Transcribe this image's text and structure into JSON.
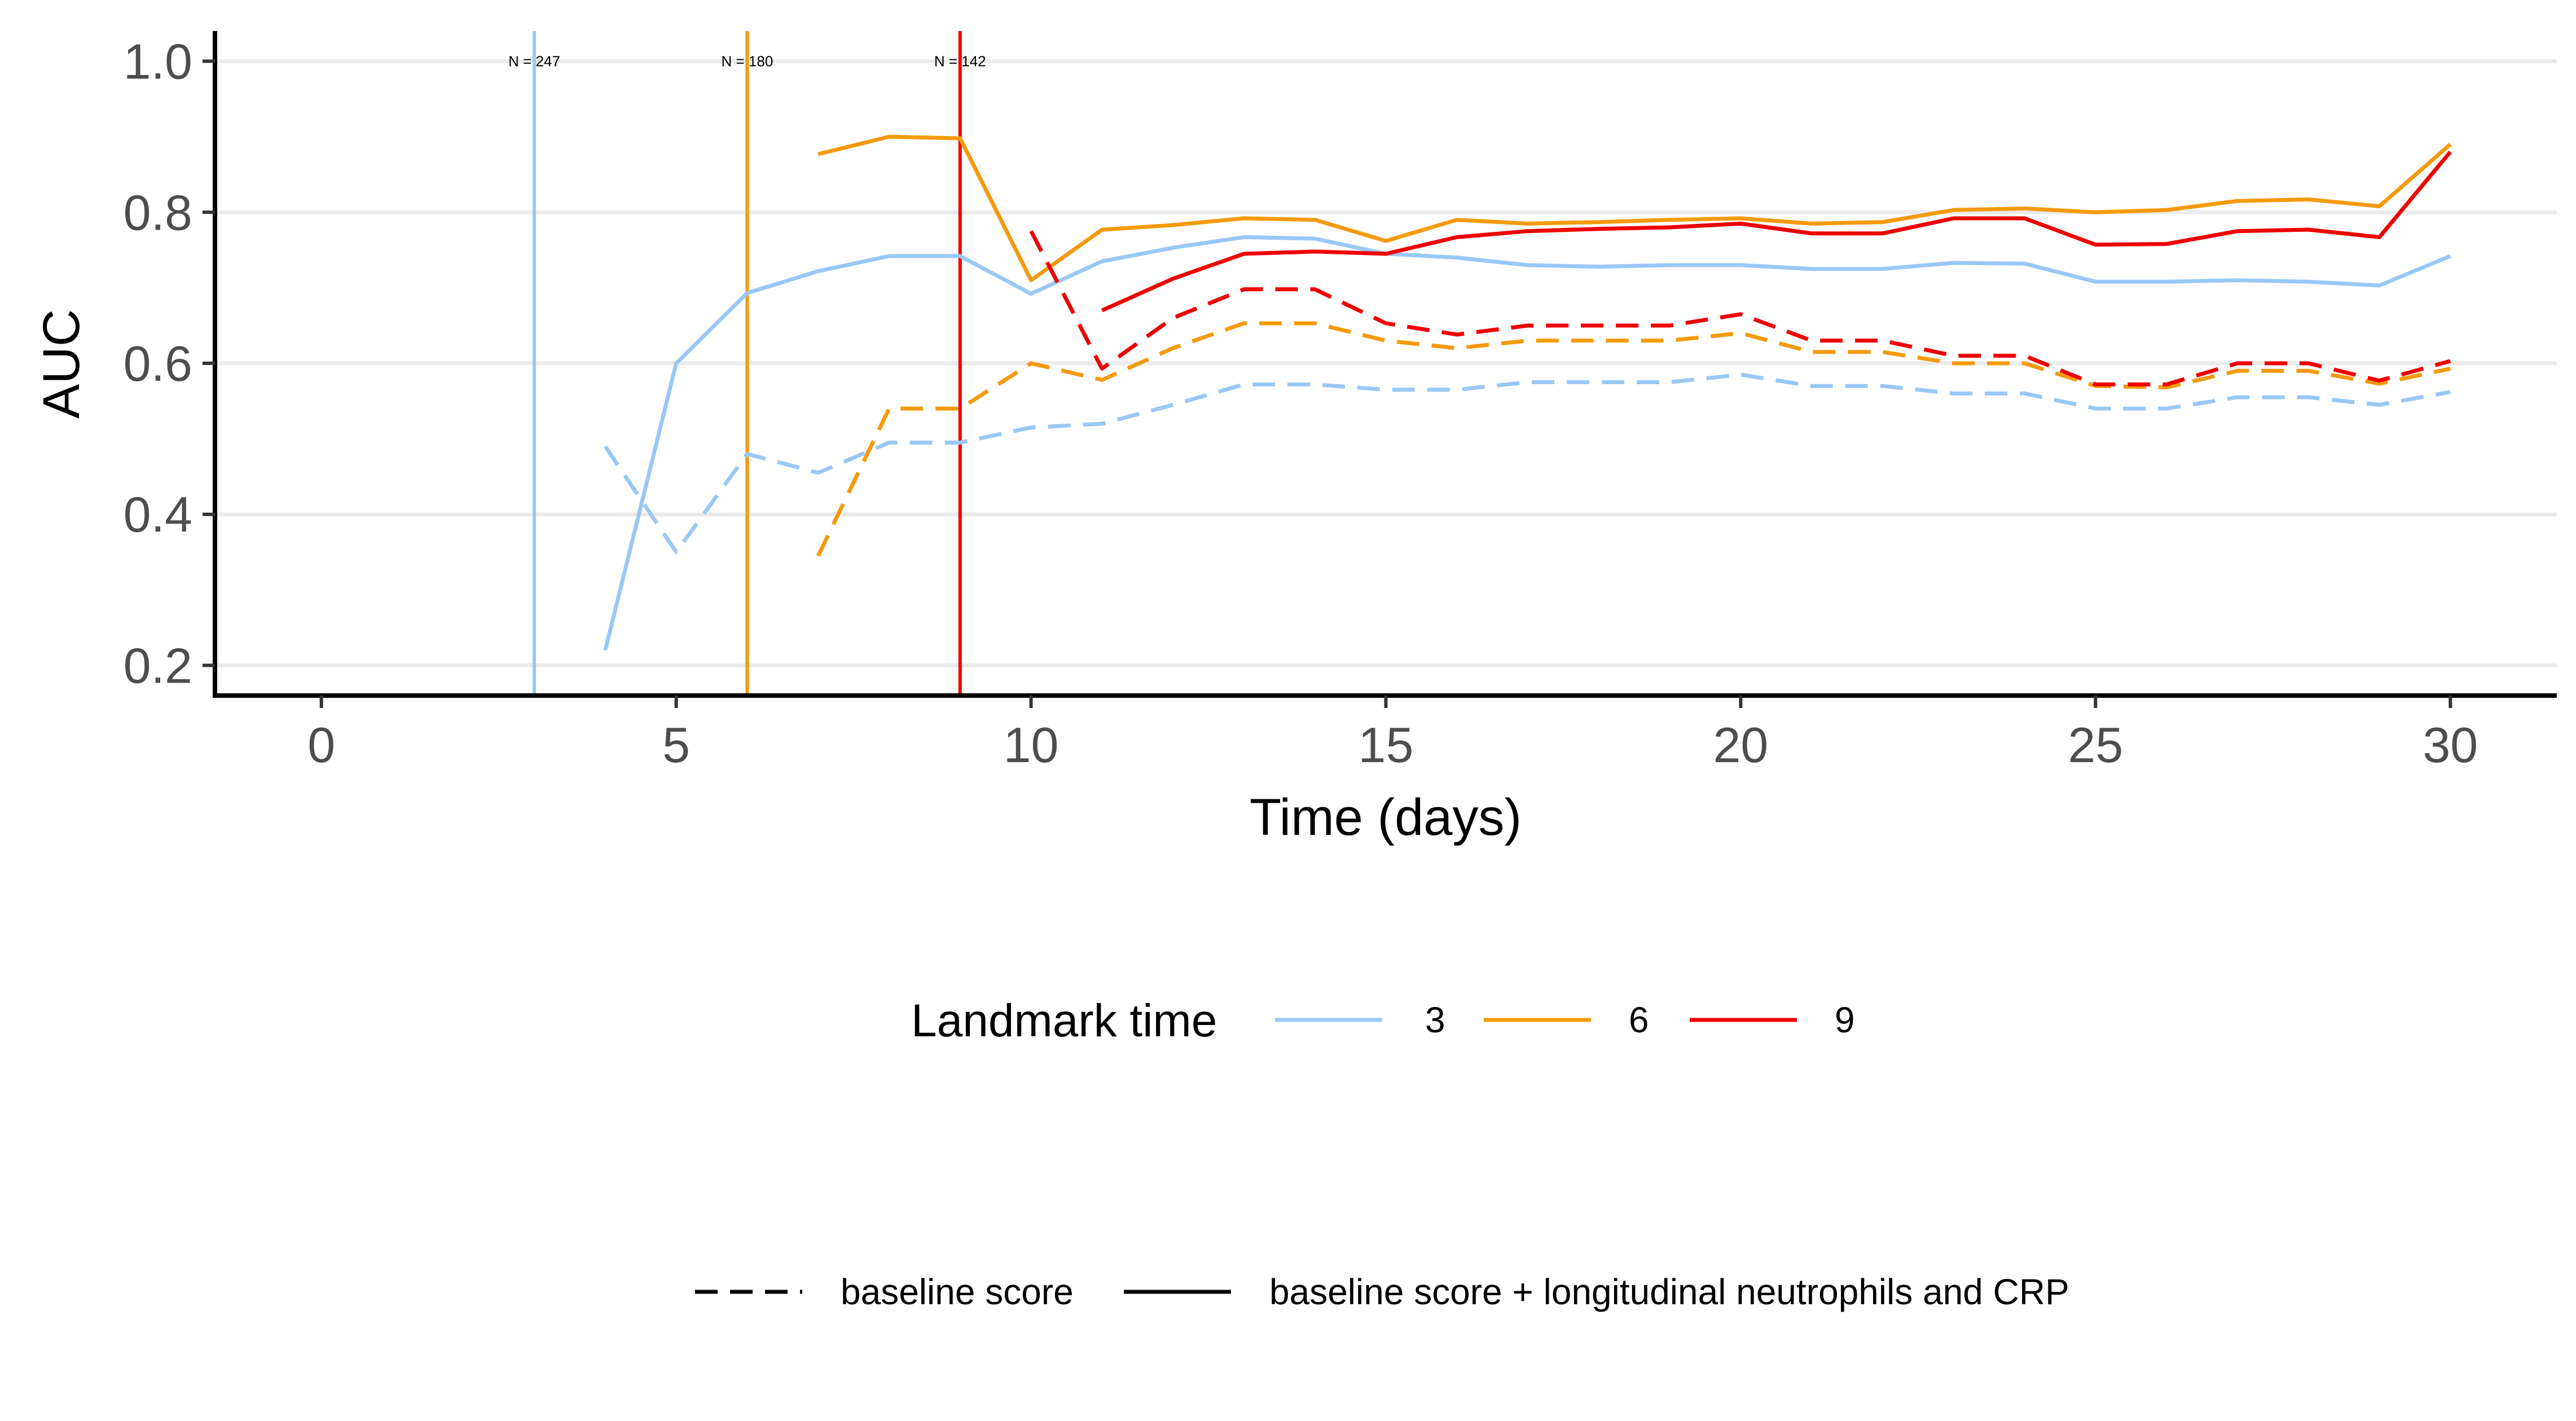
{
  "chart_data": {
    "type": "line",
    "title": "",
    "xlabel": "Time (days)",
    "ylabel": "AUC",
    "xlim": [
      -1.5,
      31.5
    ],
    "ylim": [
      0.16,
      1.04
    ],
    "x_ticks": [
      0,
      5,
      10,
      15,
      20,
      25,
      30
    ],
    "x_tick_labels": [
      "0",
      "5",
      "10",
      "15",
      "20",
      "25",
      "30"
    ],
    "y_ticks": [
      0.2,
      0.4,
      0.6,
      0.8,
      1.0
    ],
    "y_tick_labels": [
      "0.2",
      "0.4",
      "0.6",
      "0.8",
      "1.0"
    ],
    "grid": "horizontal major",
    "legend_color": {
      "title": "Landmark time",
      "position": "bottom",
      "entries": [
        {
          "label": "3",
          "color": "#99c8f5"
        },
        {
          "label": "6",
          "color": "#f59a0c"
        },
        {
          "label": "9",
          "color": "#ee0000"
        }
      ]
    },
    "legend_linetype": {
      "position": "bottom",
      "entries": [
        {
          "label": "baseline score",
          "linetype": "dashed"
        },
        {
          "label": "baseline score + longitudinal neutrophils and CRP",
          "linetype": "solid"
        }
      ]
    },
    "landmarks": [
      {
        "x": 3,
        "color": "#99c8f5",
        "label": "N = 247"
      },
      {
        "x": 6,
        "color": "#f59a0c",
        "label": "N = 180"
      },
      {
        "x": 9,
        "color": "#ee0000",
        "label": "N = 142"
      }
    ],
    "series": [
      {
        "landmark": "3",
        "model": "baseline score",
        "linetype": "dashed",
        "color": "#99c8f5",
        "x": [
          4,
          5,
          6,
          7,
          8,
          9,
          10,
          11,
          12,
          13,
          14,
          15,
          16,
          17,
          18,
          19,
          20,
          21,
          22,
          23,
          24,
          25,
          26,
          27,
          28,
          29,
          30
        ],
        "values": [
          0.49,
          0.35,
          0.48,
          0.455,
          0.495,
          0.495,
          0.515,
          0.52,
          0.545,
          0.572,
          0.572,
          0.565,
          0.565,
          0.575,
          0.575,
          0.575,
          0.585,
          0.57,
          0.57,
          0.56,
          0.56,
          0.54,
          0.54,
          0.555,
          0.555,
          0.545,
          0.562
        ]
      },
      {
        "landmark": "3",
        "model": "baseline score + longitudinal neutrophils and CRP",
        "linetype": "solid",
        "color": "#99c8f5",
        "x": [
          4,
          5,
          6,
          7,
          8,
          9,
          10,
          11,
          12,
          13,
          14,
          15,
          16,
          17,
          18,
          19,
          20,
          21,
          22,
          23,
          24,
          25,
          26,
          27,
          28,
          29,
          30
        ],
        "values": [
          0.22,
          0.6,
          0.693,
          0.722,
          0.742,
          0.742,
          0.692,
          0.735,
          0.753,
          0.767,
          0.765,
          0.745,
          0.74,
          0.73,
          0.728,
          0.73,
          0.73,
          0.725,
          0.725,
          0.733,
          0.732,
          0.708,
          0.708,
          0.71,
          0.708,
          0.703,
          0.742
        ]
      },
      {
        "landmark": "6",
        "model": "baseline score",
        "linetype": "dashed",
        "color": "#f59a0c",
        "x": [
          7,
          8,
          9,
          10,
          11,
          12,
          13,
          14,
          15,
          16,
          17,
          18,
          19,
          20,
          21,
          22,
          23,
          24,
          25,
          26,
          27,
          28,
          29,
          30
        ],
        "values": [
          0.345,
          0.54,
          0.54,
          0.6,
          0.578,
          0.62,
          0.653,
          0.653,
          0.63,
          0.62,
          0.63,
          0.63,
          0.63,
          0.64,
          0.615,
          0.615,
          0.6,
          0.6,
          0.57,
          0.568,
          0.59,
          0.59,
          0.573,
          0.593
        ]
      },
      {
        "landmark": "6",
        "model": "baseline score + longitudinal neutrophils and CRP",
        "linetype": "solid",
        "color": "#f59a0c",
        "x": [
          7,
          8,
          9,
          10,
          11,
          12,
          13,
          14,
          15,
          16,
          17,
          18,
          19,
          20,
          21,
          22,
          23,
          24,
          25,
          26,
          27,
          28,
          29,
          30
        ],
        "values": [
          0.877,
          0.9,
          0.898,
          0.71,
          0.777,
          0.783,
          0.792,
          0.79,
          0.762,
          0.79,
          0.785,
          0.787,
          0.79,
          0.792,
          0.785,
          0.787,
          0.803,
          0.805,
          0.8,
          0.803,
          0.815,
          0.817,
          0.808,
          0.89
        ]
      },
      {
        "landmark": "9",
        "model": "baseline score",
        "linetype": "dashed",
        "color": "#ee0000",
        "x": [
          10,
          11,
          12,
          13,
          14,
          15,
          16,
          17,
          18,
          19,
          20,
          21,
          22,
          23,
          24,
          25,
          26,
          27,
          28,
          29,
          30
        ],
        "values": [
          0.775,
          0.593,
          0.66,
          0.698,
          0.698,
          0.653,
          0.638,
          0.65,
          0.65,
          0.65,
          0.665,
          0.63,
          0.63,
          0.61,
          0.61,
          0.572,
          0.572,
          0.6,
          0.6,
          0.577,
          0.603
        ]
      },
      {
        "landmark": "9",
        "model": "baseline score + longitudinal neutrophils and CRP",
        "linetype": "solid",
        "color": "#ee0000",
        "x": [
          11,
          12,
          13,
          14,
          15,
          16,
          17,
          18,
          19,
          20,
          21,
          22,
          23,
          24,
          25,
          26,
          27,
          28,
          29,
          30
        ],
        "values": [
          0.67,
          0.712,
          0.745,
          0.748,
          0.745,
          0.767,
          0.775,
          0.778,
          0.78,
          0.785,
          0.772,
          0.772,
          0.792,
          0.792,
          0.757,
          0.758,
          0.775,
          0.777,
          0.767,
          0.88
        ]
      }
    ]
  }
}
